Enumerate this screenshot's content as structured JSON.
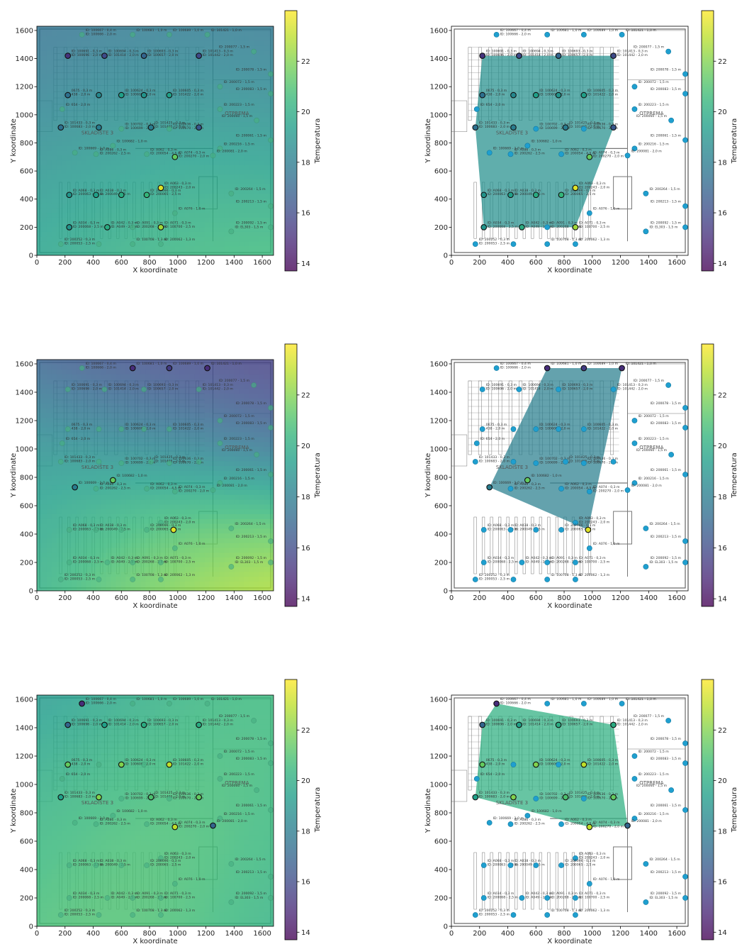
{
  "floor_plan": {
    "x": [
      320,
      220,
      680,
      480,
      940,
      760,
      1210,
      1150,
      1540,
      1660,
      1660,
      1300,
      1300,
      1560,
      1660,
      1300,
      1250,
      1380,
      1660,
      1660,
      1380,
      220,
      180,
      170,
      270,
      540,
      440,
      600,
      760,
      940,
      440,
      600,
      810,
      940,
      1150,
      980,
      420,
      780,
      880,
      230,
      420,
      600,
      780,
      980,
      230,
      500,
      680,
      880,
      170,
      440,
      680,
      880
    ],
    "y": [
      1570,
      1420,
      1570,
      1420,
      1570,
      1420,
      1570,
      1420,
      1450,
      1290,
      1150,
      1200,
      1040,
      960,
      820,
      760,
      710,
      440,
      350,
      200,
      170,
      1140,
      1040,
      910,
      730,
      780,
      1140,
      1140,
      1140,
      1140,
      910,
      900,
      910,
      900,
      910,
      700,
      720,
      720,
      480,
      430,
      430,
      430,
      430,
      300,
      200,
      200,
      200,
      200,
      80,
      80,
      80,
      80
    ],
    "labels": [
      [
        "ID: 100667 - 0,4 m",
        "ID: 100666 - 2,0 m"
      ],
      [
        "ID: 100691 - 0,3 m",
        "ID: 100696 - 2,0 m"
      ],
      [
        "ID: 100681 - 1,0 m"
      ],
      [
        "ID: 100694 - 0,3 m",
        "ID: 101414 - 2,0 m"
      ],
      [
        "ID: 100689 - 1,0 m"
      ],
      [
        "ID: 100693 - 0,3 m",
        "ID: 100657 - 2,0 m"
      ],
      [
        "ID: 101421 - 1,0 m"
      ],
      [
        "ID: 101413 - 0,3 m",
        "ID: 101442 - 2,0 m"
      ],
      [
        "ID: 200077 - 1,5 m"
      ],
      [
        "ID: 200078 - 1,5 m"
      ],
      [
        "ID: 200083 - 1,5 m"
      ],
      [
        "ID: 200072 - 1,5 m"
      ],
      [
        "ID: 200223 - 1,5 m"
      ],
      [
        "ID: 200060 - 1,5 m"
      ],
      [
        "ID: 200061 - 1,5 m"
      ],
      [
        "ID: 200216 - 1,5 m"
      ],
      [
        "ID: 200081 - 2,0 m"
      ],
      [
        "ID: 200264 - 1,5 m"
      ],
      [
        "ID: 200213 - 1,5 m"
      ],
      [
        "ID: 200092 - 1,5 m"
      ],
      [
        "ID: EL303 - 1,5 m"
      ],
      [
        "0675 - 0,3 m",
        "438 - 2,0 m"
      ],
      [
        "ID: 654 - 2,0 m"
      ],
      [
        "ID: 101433 - 0,3 m",
        "ID: 100683 - 2,0 m"
      ],
      [
        "ID: 100669 - 1,0 m"
      ],
      [
        "ID: 100682 - 1,0 m"
      ],
      null,
      [
        "ID: 100624 - 0,3 m",
        "ID: 100600 - 2,0 m"
      ],
      null,
      [
        "ID: 100605 - 0,3 m",
        "ID: 101422 - 2,0 m"
      ],
      null,
      [
        "ID: 100702 - 0,3 m",
        "ID: 100699 - 2,0 m"
      ],
      [
        "ID: 101425 - 0,3 m",
        "ID: 101405 - 2,0 m"
      ],
      [
        "ID: 100636 - 0,3 m",
        "ID: 100670 - 2,0 m"
      ],
      null,
      [
        "ID: A074 - 0,3 m",
        "ID: 200270 - 2,0 m"
      ],
      [
        "ID: A086 - 0,3 m",
        "ID: 200262 - 2,5 m"
      ],
      [
        "ID: A062 - 0,3 m",
        "ID: 200054 - 4,5 m"
      ],
      [
        "ID: A063 - 0,3 m",
        "ID: 200243 - 2,0 m"
      ],
      [
        "ID: A068 - 0,3 m",
        "ID: 200063 - 2,5 m"
      ],
      [
        "ID: A038 - 0,3 m",
        "ID: 200049 - 2,5 m"
      ],
      null,
      [
        "ID: 200096 - 0,3 m",
        "ID: 200065 - 2,5 m"
      ],
      [
        "ID: A076 - 1,0 m"
      ],
      [
        "ID: A034 - 0,3 m",
        "ID: 200068 - 2,5 m"
      ],
      [
        "ID: A042 - 0,3 m",
        "ID: A049 - 2,5 m"
      ],
      [
        "ID: A091 - 0,3 m",
        "ID: 200268 - 2,5 m"
      ],
      [
        "ID: A071 - 0,3 m",
        "ID: 100700 - 2,5 m"
      ],
      [
        "ID: 200252 - 0,3 m",
        "ID: 200053 - 2,5 m"
      ],
      null,
      [
        "ID: 100708 - 1,3 m"
      ],
      [
        "ID: 200062 - 1,3 m"
      ]
    ],
    "rooms": [
      "SKLADIŠTE 3",
      "OTPREMA"
    ]
  },
  "chart_data": [
    {
      "type": "heatmap",
      "xlabel": "X koordinate",
      "ylabel": "Y koordinate",
      "xlim": [
        0,
        1680
      ],
      "ylim": [
        0,
        1630
      ],
      "xticks": [
        0,
        200,
        400,
        600,
        800,
        1000,
        1200,
        1400,
        1600
      ],
      "yticks": [
        0,
        200,
        400,
        600,
        800,
        1000,
        1200,
        1400,
        1600
      ],
      "x": [
        220,
        480,
        760,
        1150,
        220,
        440,
        600,
        760,
        940,
        170,
        440,
        810,
        1150,
        980,
        880,
        880,
        230,
        420,
        600,
        780,
        230,
        500
      ],
      "y": [
        1420,
        1420,
        1420,
        1420,
        1140,
        1140,
        1140,
        1140,
        1140,
        910,
        910,
        910,
        910,
        700,
        480,
        200,
        430,
        430,
        430,
        430,
        200,
        200
      ],
      "values": [
        15.2,
        16,
        17,
        16,
        17.5,
        18.5,
        19.5,
        19,
        19.5,
        17.5,
        18,
        18,
        16.5,
        21.5,
        23.5,
        22.5,
        19,
        19.5,
        20,
        20.5,
        19,
        20
      ],
      "colormap": "viridis",
      "colorbar": {
        "label": "Temperatura",
        "lim": [
          13.7,
          24
        ],
        "ticks": [
          14,
          16,
          18,
          20,
          22
        ]
      }
    },
    {
      "type": "hull",
      "xlabel": "X koordinate",
      "ylabel": "Y koordinate",
      "xlim": [
        0,
        1680
      ],
      "ylim": [
        0,
        1630
      ],
      "xticks": [
        0,
        200,
        400,
        600,
        800,
        1000,
        1200,
        1400,
        1600
      ],
      "yticks": [
        0,
        200,
        400,
        600,
        800,
        1000,
        1200,
        1400,
        1600
      ],
      "x": [
        220,
        480,
        760,
        1150,
        220,
        440,
        600,
        760,
        940,
        170,
        440,
        810,
        1150,
        980,
        880,
        880,
        230,
        420,
        600,
        780,
        230,
        500
      ],
      "y": [
        1420,
        1420,
        1420,
        1420,
        1140,
        1140,
        1140,
        1140,
        1140,
        910,
        910,
        910,
        910,
        700,
        480,
        200,
        430,
        430,
        430,
        430,
        200,
        200
      ],
      "values": [
        15.2,
        16,
        17,
        16,
        17.5,
        18.5,
        19.5,
        19,
        19.5,
        17.5,
        18,
        18,
        16.5,
        21.5,
        23.5,
        22.5,
        19,
        19.5,
        20,
        20.5,
        19,
        20
      ],
      "colormap": "viridis",
      "colorbar": {
        "label": "Temperatura",
        "lim": [
          13.7,
          24
        ],
        "ticks": [
          14,
          16,
          18,
          20,
          22
        ]
      }
    },
    {
      "type": "heatmap",
      "xlabel": "X koordinate",
      "ylabel": "Y koordinate",
      "xlim": [
        0,
        1680
      ],
      "ylim": [
        0,
        1630
      ],
      "xticks": [
        0,
        200,
        400,
        600,
        800,
        1000,
        1200,
        1400,
        1600
      ],
      "yticks": [
        0,
        200,
        400,
        600,
        800,
        1000,
        1200,
        1400,
        1600
      ],
      "x": [
        680,
        940,
        1210,
        270,
        540,
        970
      ],
      "y": [
        1570,
        1570,
        1570,
        730,
        780,
        430
      ],
      "values": [
        15,
        15.5,
        15,
        18,
        21.5,
        23.5
      ],
      "colormap": "viridis",
      "colorbar": {
        "label": "Temperatura",
        "lim": [
          13.7,
          24
        ],
        "ticks": [
          14,
          16,
          18,
          20,
          22
        ]
      }
    },
    {
      "type": "hull",
      "xlabel": "X koordinate",
      "ylabel": "Y koordinate",
      "xlim": [
        0,
        1680
      ],
      "ylim": [
        0,
        1630
      ],
      "xticks": [
        0,
        200,
        400,
        600,
        800,
        1000,
        1200,
        1400,
        1600
      ],
      "yticks": [
        0,
        200,
        400,
        600,
        800,
        1000,
        1200,
        1400,
        1600
      ],
      "x": [
        680,
        940,
        1210,
        270,
        540,
        970
      ],
      "y": [
        1570,
        1570,
        1570,
        730,
        780,
        430
      ],
      "values": [
        15,
        15.5,
        15,
        18,
        21.5,
        23.5
      ],
      "colormap": "viridis",
      "colorbar": {
        "label": "Temperatura",
        "lim": [
          13.7,
          24
        ],
        "ticks": [
          14,
          16,
          18,
          20,
          22
        ]
      }
    },
    {
      "type": "heatmap",
      "xlabel": "X koordinate",
      "ylabel": "Y koordinate",
      "xlim": [
        0,
        1680
      ],
      "ylim": [
        0,
        1630
      ],
      "xticks": [
        0,
        200,
        400,
        600,
        800,
        1000,
        1200,
        1400,
        1600
      ],
      "yticks": [
        0,
        200,
        400,
        600,
        800,
        1000,
        1200,
        1400,
        1600
      ],
      "x": [
        320,
        220,
        480,
        760,
        1150,
        220,
        600,
        940,
        170,
        440,
        810,
        1150,
        980,
        1250
      ],
      "y": [
        1570,
        1420,
        1420,
        1420,
        1420,
        1140,
        1140,
        1140,
        910,
        910,
        910,
        910,
        700,
        710
      ],
      "values": [
        15,
        17,
        19.5,
        20,
        20,
        21.5,
        22,
        23,
        19.5,
        22,
        21,
        21.5,
        23,
        17
      ],
      "colormap": "viridis",
      "colorbar": {
        "label": "Temperatura",
        "lim": [
          13.7,
          24
        ],
        "ticks": [
          14,
          16,
          18,
          20,
          22
        ]
      }
    },
    {
      "type": "hull",
      "xlabel": "X koordinate",
      "ylabel": "Y koordinate",
      "xlim": [
        0,
        1680
      ],
      "ylim": [
        0,
        1630
      ],
      "xticks": [
        0,
        200,
        400,
        600,
        800,
        1000,
        1200,
        1400,
        1600
      ],
      "yticks": [
        0,
        200,
        400,
        600,
        800,
        1000,
        1200,
        1400,
        1600
      ],
      "x": [
        320,
        220,
        480,
        760,
        1150,
        220,
        600,
        940,
        170,
        440,
        810,
        1150,
        980,
        1250
      ],
      "y": [
        1570,
        1420,
        1420,
        1420,
        1420,
        1140,
        1140,
        1140,
        910,
        910,
        910,
        910,
        700,
        710
      ],
      "values": [
        15,
        17,
        19.5,
        20,
        20,
        21.5,
        22,
        23,
        19.5,
        22,
        21,
        21.5,
        23,
        17
      ],
      "colormap": "viridis",
      "colorbar": {
        "label": "Temperatura",
        "lim": [
          13.7,
          24
        ],
        "ticks": [
          14,
          16,
          18,
          20,
          22
        ]
      }
    }
  ]
}
